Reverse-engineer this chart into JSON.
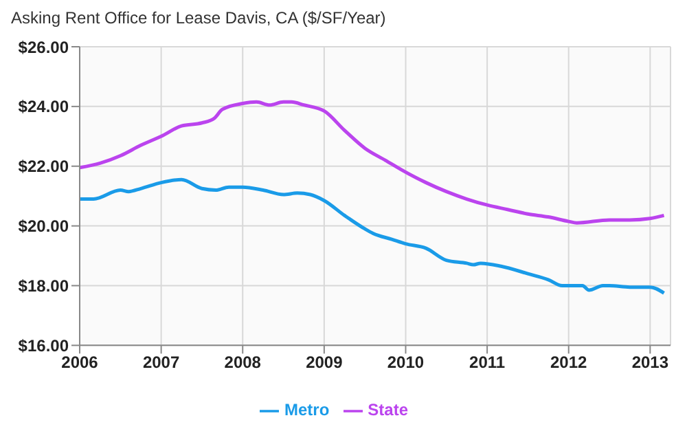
{
  "chart_data": {
    "type": "line",
    "title": "Asking Rent Office for Lease Davis, CA ($/SF/Year)",
    "xlim": [
      2006,
      2013.25
    ],
    "xticks": [
      2006,
      2007,
      2008,
      2009,
      2010,
      2011,
      2012,
      2013
    ],
    "ylim": [
      16,
      26
    ],
    "yticks": [
      {
        "value": 16,
        "label": "$16.00"
      },
      {
        "value": 18,
        "label": "$18.00"
      },
      {
        "value": 20,
        "label": "$20.00"
      },
      {
        "value": 22,
        "label": "$22.00"
      },
      {
        "value": 24,
        "label": "$24.00"
      },
      {
        "value": 26,
        "label": "$26.00"
      }
    ],
    "grid": true,
    "legend": "bottom",
    "marker": "none",
    "line_style": "solid",
    "series": [
      {
        "name": "State",
        "color": "#bb44ee",
        "x": [
          2006,
          2006.25,
          2006.5,
          2006.75,
          2007,
          2007.25,
          2007.5,
          2007.65,
          2007.75,
          2008,
          2008.17,
          2008.33,
          2008.5,
          2008.6,
          2008.75,
          2009,
          2009.25,
          2009.5,
          2009.75,
          2010,
          2010.25,
          2010.5,
          2010.75,
          2011,
          2011.25,
          2011.5,
          2011.75,
          2012,
          2012.1,
          2012.5,
          2012.75,
          2013,
          2013.17
        ],
        "values": [
          21.95,
          22.1,
          22.35,
          22.7,
          23.0,
          23.35,
          23.45,
          23.6,
          23.9,
          24.1,
          24.15,
          24.05,
          24.15,
          24.15,
          24.05,
          23.85,
          23.2,
          22.6,
          22.2,
          21.8,
          21.45,
          21.15,
          20.9,
          20.7,
          20.55,
          20.4,
          20.3,
          20.15,
          20.1,
          20.2,
          20.2,
          20.25,
          20.35
        ]
      },
      {
        "name": "Metro",
        "color": "#1a9be8",
        "x": [
          2006,
          2006.17,
          2006.5,
          2006.6,
          2006.75,
          2007,
          2007.25,
          2007.5,
          2007.67,
          2007.83,
          2008,
          2008.25,
          2008.5,
          2008.67,
          2008.83,
          2009,
          2009.25,
          2009.5,
          2009.6,
          2009.83,
          2010,
          2010.25,
          2010.5,
          2010.75,
          2010.83,
          2010.92,
          2011.17,
          2011.5,
          2011.75,
          2011.92,
          2012.17,
          2012.25,
          2012.42,
          2012.5,
          2012.75,
          2013,
          2013.17
        ],
        "values": [
          20.9,
          20.9,
          21.2,
          21.15,
          21.25,
          21.45,
          21.55,
          21.25,
          21.2,
          21.3,
          21.3,
          21.2,
          21.05,
          21.1,
          21.05,
          20.85,
          20.35,
          19.9,
          19.75,
          19.55,
          19.4,
          19.25,
          18.85,
          18.75,
          18.7,
          18.75,
          18.65,
          18.4,
          18.2,
          18.0,
          18.0,
          17.85,
          18.0,
          18.0,
          17.95,
          17.95,
          17.75
        ]
      }
    ]
  }
}
